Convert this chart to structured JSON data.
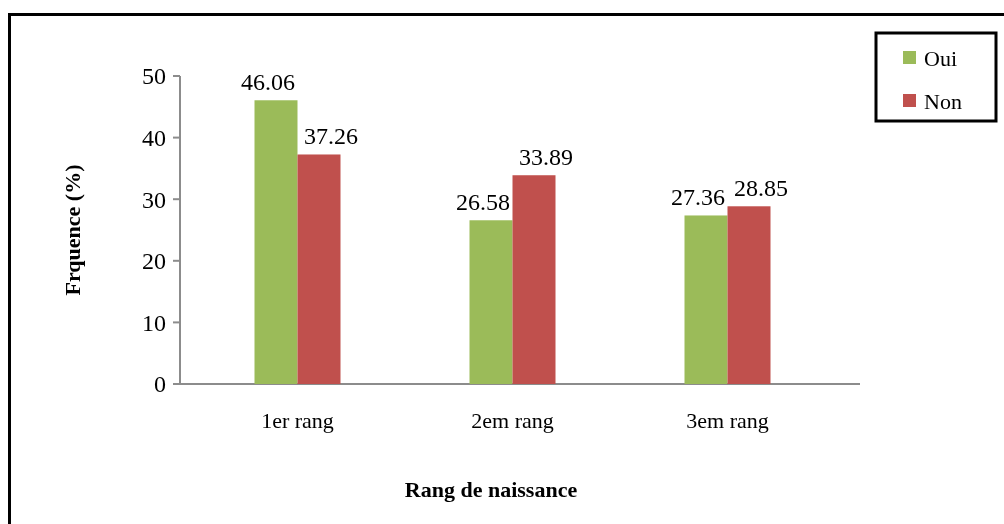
{
  "chart_data": {
    "type": "bar",
    "xlabel": "Rang de naissance",
    "ylabel": "Frquence (%)",
    "categories": [
      "1er rang",
      "2em rang",
      "3em rang"
    ],
    "series": [
      {
        "name": "Oui",
        "color": "#9bbb59",
        "values": [
          46.06,
          26.58,
          27.36
        ]
      },
      {
        "name": "Non",
        "color": "#c0504d",
        "values": [
          37.26,
          33.89,
          28.85
        ]
      }
    ],
    "ylim": [
      0,
      50
    ],
    "yticks": [
      0,
      10,
      20,
      30,
      40,
      50
    ],
    "grid": false,
    "legend": "top right",
    "data_labels": true
  }
}
